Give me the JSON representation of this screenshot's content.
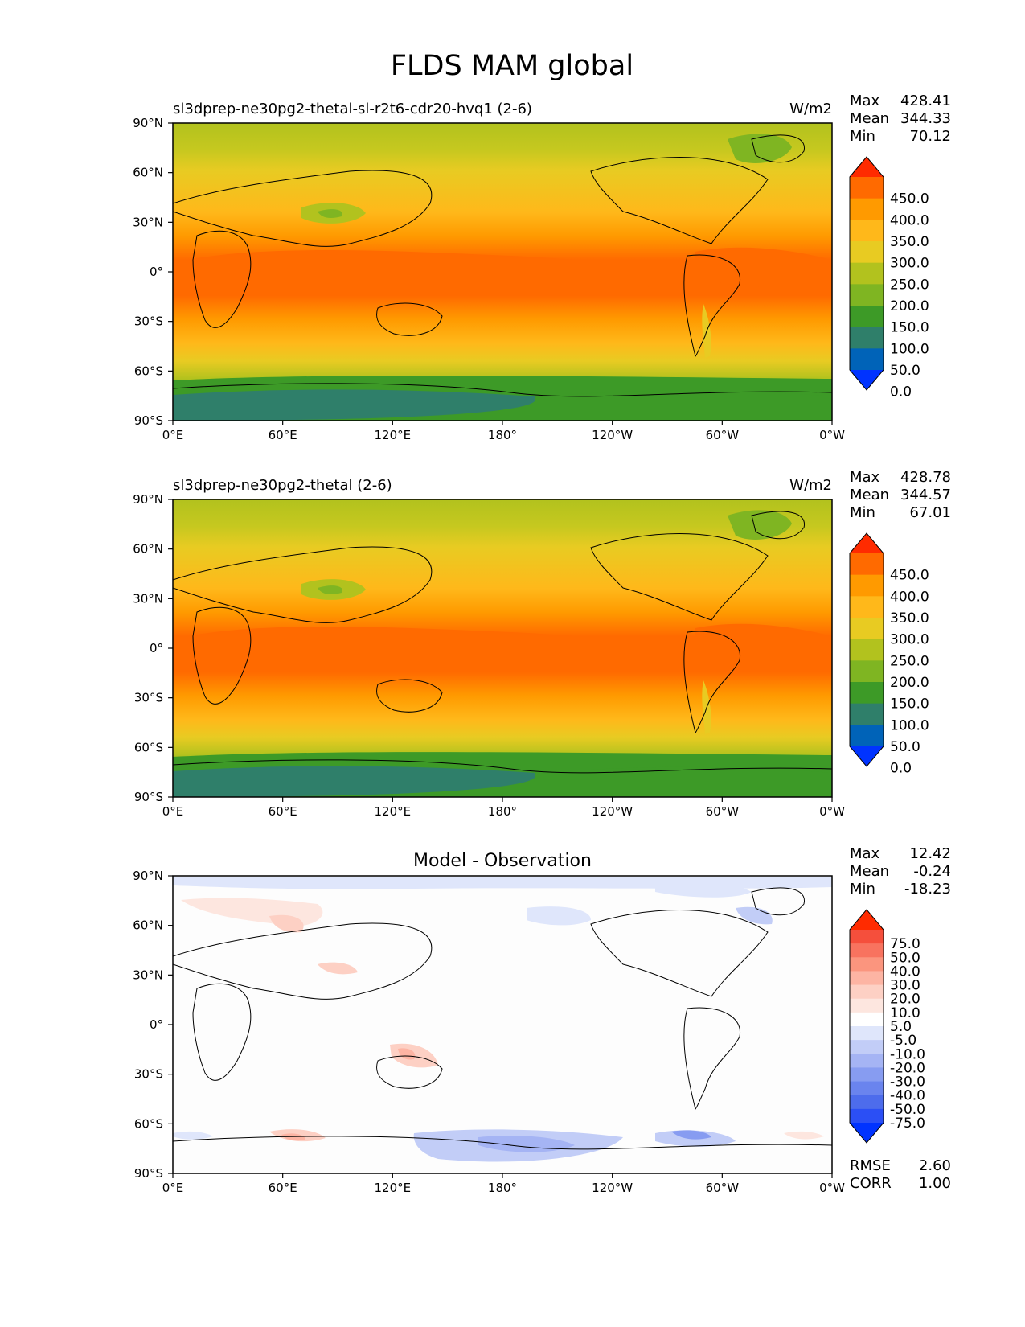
{
  "figure": {
    "title": "FLDS MAM global"
  },
  "axes": {
    "lat_ticks": [
      "90°N",
      "60°N",
      "30°N",
      "0°",
      "30°S",
      "60°S",
      "90°S"
    ],
    "lon_ticks": [
      "0°E",
      "60°E",
      "120°E",
      "180°",
      "120°W",
      "60°W",
      "0°W"
    ]
  },
  "panels": [
    {
      "id": "test",
      "title_left": "sl3dprep-ne30pg2-thetal-sl-r2t6-cdr20-hvq1 (2-6)",
      "title_center": "",
      "units": "W/m2",
      "stats": [
        {
          "label": "Max",
          "value": "428.41"
        },
        {
          "label": "Mean",
          "value": "344.33"
        },
        {
          "label": "Min",
          "value": "70.12"
        }
      ],
      "colorbar": {
        "labels": [
          "450.0",
          "400.0",
          "350.0",
          "300.0",
          "250.0",
          "200.0",
          "150.0",
          "100.0",
          "50.0",
          "0.0"
        ],
        "colors": [
          "#ff2b00",
          "#ff6a00",
          "#ff9a00",
          "#ffb81a",
          "#e8cb22",
          "#b2c21e",
          "#7fb522",
          "#3d9a27",
          "#2f7f6a",
          "#0063b8",
          "#0033ff"
        ]
      }
    },
    {
      "id": "reference",
      "title_left": "sl3dprep-ne30pg2-thetal (2-6)",
      "title_center": "",
      "units": "W/m2",
      "stats": [
        {
          "label": "Max",
          "value": "428.78"
        },
        {
          "label": "Mean",
          "value": "344.57"
        },
        {
          "label": "Min",
          "value": "67.01"
        }
      ],
      "colorbar": {
        "labels": [
          "450.0",
          "400.0",
          "350.0",
          "300.0",
          "250.0",
          "200.0",
          "150.0",
          "100.0",
          "50.0",
          "0.0"
        ],
        "colors": [
          "#ff2b00",
          "#ff6a00",
          "#ff9a00",
          "#ffb81a",
          "#e8cb22",
          "#b2c21e",
          "#7fb522",
          "#3d9a27",
          "#2f7f6a",
          "#0063b8",
          "#0033ff"
        ]
      }
    },
    {
      "id": "diff",
      "title_left": "",
      "title_center": "Model - Observation",
      "units": "",
      "stats": [
        {
          "label": "Max",
          "value": "12.42"
        },
        {
          "label": "Mean",
          "value": "-0.24"
        },
        {
          "label": "Min",
          "value": "-18.23"
        }
      ],
      "bottom_stats": [
        {
          "label": "RMSE",
          "value": "2.60"
        },
        {
          "label": "CORR",
          "value": "1.00"
        }
      ],
      "colorbar": {
        "labels": [
          "75.0",
          "50.0",
          "40.0",
          "30.0",
          "20.0",
          "10.0",
          "5.0",
          "-5.0",
          "-10.0",
          "-20.0",
          "-30.0",
          "-40.0",
          "-50.0",
          "-75.0"
        ],
        "colors": [
          "#ff2b00",
          "#f54f3c",
          "#f8735f",
          "#fb957e",
          "#fdb4a3",
          "#fdd0c4",
          "#fde6df",
          "#ffffff",
          "#dfe6fb",
          "#c2cdf7",
          "#a5b4f4",
          "#879cf1",
          "#6a84ee",
          "#4d6cec",
          "#2b4ff5",
          "#0033ff"
        ]
      }
    }
  ]
}
